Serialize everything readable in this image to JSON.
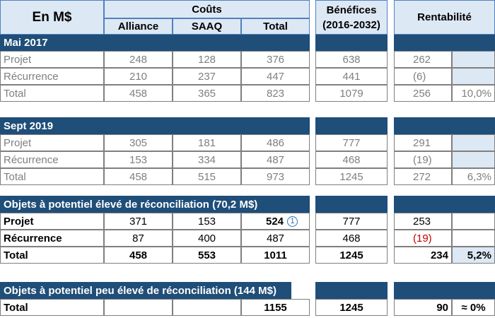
{
  "header": {
    "unit": "En M$",
    "couts": "Coûts",
    "alliance": "Alliance",
    "saaq": "SAAQ",
    "total": "Total",
    "benefices": "Bénéfices",
    "period": "(2016-2032)",
    "rentabilite": "Rentabilité"
  },
  "sections": {
    "mai2017": {
      "title": "Mai 2017",
      "rows": [
        {
          "label": "Projet",
          "alliance": "248",
          "saaq": "128",
          "total": "376",
          "benefices": "638",
          "rent": "262",
          "pct": ""
        },
        {
          "label": "Récurrence",
          "alliance": "210",
          "saaq": "237",
          "total": "447",
          "benefices": "441",
          "rent": "(6)",
          "pct": ""
        },
        {
          "label": "Total",
          "alliance": "458",
          "saaq": "365",
          "total": "823",
          "benefices": "1079",
          "rent": "256",
          "pct": "10,0%"
        }
      ]
    },
    "sept2019": {
      "title": "Sept 2019",
      "rows": [
        {
          "label": "Projet",
          "alliance": "305",
          "saaq": "181",
          "total": "486",
          "benefices": "777",
          "rent": "291",
          "pct": ""
        },
        {
          "label": "Récurrence",
          "alliance": "153",
          "saaq": "334",
          "total": "487",
          "benefices": "468",
          "rent": "(19)",
          "pct": ""
        },
        {
          "label": "Total",
          "alliance": "458",
          "saaq": "515",
          "total": "973",
          "benefices": "1245",
          "rent": "272",
          "pct": "6,3%"
        }
      ]
    },
    "eleve": {
      "title": "Objets à potentiel élevé de réconciliation (70,2 M$)",
      "note": "1",
      "rows": [
        {
          "label": "Projet",
          "alliance": "371",
          "saaq": "153",
          "total": "524",
          "benefices": "777",
          "rent": "253",
          "pct": ""
        },
        {
          "label": "Récurrence",
          "alliance": "87",
          "saaq": "400",
          "total": "487",
          "benefices": "468",
          "rent": "(19)",
          "pct": ""
        },
        {
          "label": "Total",
          "alliance": "458",
          "saaq": "553",
          "total": "1011",
          "benefices": "1245",
          "rent": "234",
          "pct": "5,2%"
        }
      ]
    },
    "peu": {
      "title": "Objets à potentiel peu élevé de réconciliation (144 M$)",
      "rows": [
        {
          "label": "Total",
          "alliance": "",
          "saaq": "",
          "total": "1155",
          "benefices": "1245",
          "rent": "90",
          "pct": "≈ 0%"
        }
      ]
    }
  }
}
